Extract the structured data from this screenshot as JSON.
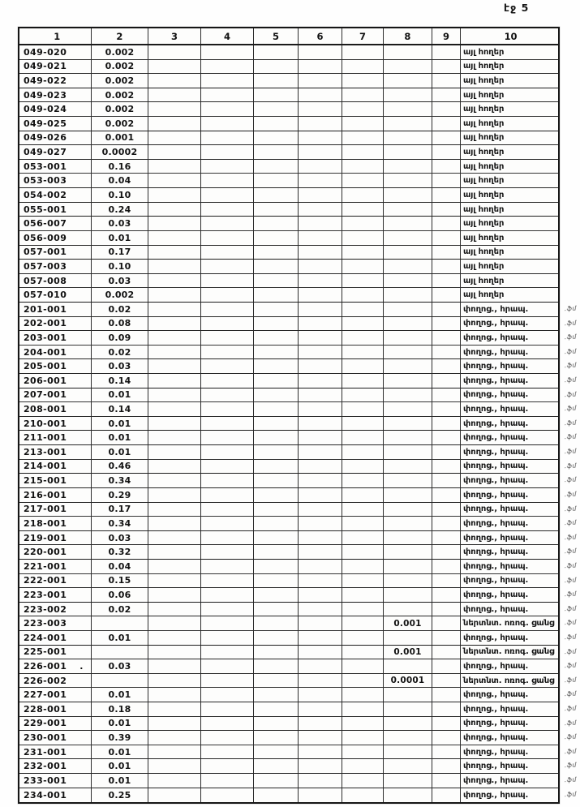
{
  "page": {
    "label": "էջ 5"
  },
  "labels": {
    "other_lands": "այլ հողեր",
    "streets_squares": "փողոց., հրապ.",
    "irrigation_network": "ներտնտ. ոռոգ. ցանց"
  },
  "table": {
    "headers": [
      "1",
      "2",
      "3",
      "4",
      "5",
      "6",
      "7",
      "8",
      "9",
      "10"
    ],
    "rows": [
      {
        "c1": "049-020",
        "c2": "0.002",
        "c8": "",
        "c10": "այլ հողեր",
        "mark": ""
      },
      {
        "c1": "049-021",
        "c2": "0.002",
        "c8": "",
        "c10": "այլ հողեր",
        "mark": ""
      },
      {
        "c1": "049-022",
        "c2": "0.002",
        "c8": "",
        "c10": "այլ հողեր",
        "mark": ""
      },
      {
        "c1": "049-023",
        "c2": "0.002",
        "c8": "",
        "c10": "այլ հողեր",
        "mark": ""
      },
      {
        "c1": "049-024",
        "c2": "0.002",
        "c8": "",
        "c10": "այլ հողեր",
        "mark": ""
      },
      {
        "c1": "049-025",
        "c2": "0.002",
        "c8": "",
        "c10": "այլ հողեր",
        "mark": ""
      },
      {
        "c1": "049-026",
        "c2": "0.001",
        "c8": "",
        "c10": "այլ հողեր",
        "mark": ""
      },
      {
        "c1": "049-027",
        "c2": "0.0002",
        "c8": "",
        "c10": "այլ հողեր",
        "mark": ""
      },
      {
        "c1": "053-001",
        "c2": "0.16",
        "c8": "",
        "c10": "այլ հողեր",
        "mark": ""
      },
      {
        "c1": "053-003",
        "c2": "0.04",
        "c8": "",
        "c10": "այլ հողեր",
        "mark": ""
      },
      {
        "c1": "054-002",
        "c2": "0.10",
        "c8": "",
        "c10": "այլ հողեր",
        "mark": ""
      },
      {
        "c1": "055-001",
        "c2": "0.24",
        "c8": "",
        "c10": "այլ հողեր",
        "mark": ""
      },
      {
        "c1": "056-007",
        "c2": "0.03",
        "c8": "",
        "c10": "այլ հողեր",
        "mark": ""
      },
      {
        "c1": "056-009",
        "c2": "0.01",
        "c8": "",
        "c10": "այլ հողեր",
        "mark": ""
      },
      {
        "c1": "057-001",
        "c2": "0.17",
        "c8": "",
        "c10": "այլ հողեր",
        "mark": ""
      },
      {
        "c1": "057-003",
        "c2": "0.10",
        "c8": "",
        "c10": "այլ հողեր",
        "mark": ""
      },
      {
        "c1": "057-008",
        "c2": "0.03",
        "c8": "",
        "c10": "այլ հողեր",
        "mark": ""
      },
      {
        "c1": "057-010",
        "c2": "0.002",
        "c8": "",
        "c10": "այլ հողեր",
        "mark": ""
      },
      {
        "c1": "201-001",
        "c2": "0.02",
        "c8": "",
        "c10": "փողոց., հրապ.",
        "mark": ".ֆմ"
      },
      {
        "c1": "202-001",
        "c2": "0.08",
        "c8": "",
        "c10": "փողոց., հրապ.",
        "mark": ".ֆմ"
      },
      {
        "c1": "203-001",
        "c2": "0.09",
        "c8": "",
        "c10": "փողոց., հրապ.",
        "mark": ".ֆմ"
      },
      {
        "c1": "204-001",
        "c2": "0.02",
        "c8": "",
        "c10": "փողոց., հրապ.",
        "mark": ".ֆմ"
      },
      {
        "c1": "205-001",
        "c2": "0.03",
        "c8": "",
        "c10": "փողոց., հրապ.",
        "mark": ".ֆմ"
      },
      {
        "c1": "206-001",
        "c2": "0.14",
        "c8": "",
        "c10": "փողոց., հրապ.",
        "mark": ".ֆմ"
      },
      {
        "c1": "207-001",
        "c2": "0.01",
        "c8": "",
        "c10": "փողոց., հրապ.",
        "mark": ".ֆմ"
      },
      {
        "c1": "208-001",
        "c2": "0.14",
        "c8": "",
        "c10": "փողոց., հրապ.",
        "mark": ".ֆմ"
      },
      {
        "c1": "210-001",
        "c2": "0.01",
        "c8": "",
        "c10": "փողոց., հրապ.",
        "mark": ".ֆմ"
      },
      {
        "c1": "211-001",
        "c2": "0.01",
        "c8": "",
        "c10": "փողոց., հրապ.",
        "mark": ".ֆմ"
      },
      {
        "c1": "213-001",
        "c2": "0.01",
        "c8": "",
        "c10": "փողոց., հրապ.",
        "mark": ".ֆմ"
      },
      {
        "c1": "214-001",
        "c2": "0.46",
        "c8": "",
        "c10": "փողոց., հրապ.",
        "mark": ".ֆմ"
      },
      {
        "c1": "215-001",
        "c2": "0.34",
        "c8": "",
        "c10": "փողոց., հրապ.",
        "mark": ".ֆմ"
      },
      {
        "c1": "216-001",
        "c2": "0.29",
        "c8": "",
        "c10": "փողոց., հրապ.",
        "mark": ".ֆմ"
      },
      {
        "c1": "217-001",
        "c2": "0.17",
        "c8": "",
        "c10": "փողոց., հրապ.",
        "mark": ".ֆմ"
      },
      {
        "c1": "218-001",
        "c2": "0.34",
        "c8": "",
        "c10": "փողոց., հրապ.",
        "mark": ".ֆմ"
      },
      {
        "c1": "219-001",
        "c2": "0.03",
        "c8": "",
        "c10": "փողոց., հրապ.",
        "mark": ".ֆմ"
      },
      {
        "c1": "220-001",
        "c2": "0.32",
        "c8": "",
        "c10": "փողոց., հրապ.",
        "mark": ".ֆմ"
      },
      {
        "c1": "221-001",
        "c2": "0.04",
        "c8": "",
        "c10": "փողոց., հրապ.",
        "mark": ".ֆմ"
      },
      {
        "c1": "222-001",
        "c2": "0.15",
        "c8": "",
        "c10": "փողոց., հրապ.",
        "mark": ".ֆմ"
      },
      {
        "c1": "223-001",
        "c2": "0.06",
        "c8": "",
        "c10": "փողոց., հրապ.",
        "mark": ".ֆմ"
      },
      {
        "c1": "223-002",
        "c2": "0.02",
        "c8": "",
        "c10": "փողոց., հրապ.",
        "mark": ".ֆմ"
      },
      {
        "c1": "223-003",
        "c2": "",
        "c8": "0.001",
        "c10": "ներտնտ. ոռոգ. ցանց",
        "mark": ".ֆմ"
      },
      {
        "c1": "224-001",
        "c2": "0.01",
        "c8": "",
        "c10": "փողոց., հրապ.",
        "mark": ".ֆմ"
      },
      {
        "c1": "225-001",
        "c2": "",
        "c8": "0.001",
        "c10": "ներտնտ. ոռոգ. ցանց",
        "mark": ".ֆմ"
      },
      {
        "c1": "226-001",
        "c2": "0.03",
        "c8": "",
        "c10": "փողոց., հրապ.",
        "mark": ".ֆմ",
        "stray_dot": true
      },
      {
        "c1": "226-002",
        "c2": "",
        "c8": "0.0001",
        "c10": "ներտնտ. ոռոգ. ցանց",
        "mark": ".ֆմ"
      },
      {
        "c1": "227-001",
        "c2": "0.01",
        "c8": "",
        "c10": "փողոց., հրապ.",
        "mark": ".ֆմ"
      },
      {
        "c1": "228-001",
        "c2": "0.18",
        "c8": "",
        "c10": "փողոց., հրապ.",
        "mark": ".ֆմ"
      },
      {
        "c1": "229-001",
        "c2": "0.01",
        "c8": "",
        "c10": "փողոց., հրապ.",
        "mark": ".ֆմ"
      },
      {
        "c1": "230-001",
        "c2": "0.39",
        "c8": "",
        "c10": "փողոց., հրապ.",
        "mark": ".ֆմ"
      },
      {
        "c1": "231-001",
        "c2": "0.01",
        "c8": "",
        "c10": "փողոց., հրապ.",
        "mark": ".ֆմ"
      },
      {
        "c1": "232-001",
        "c2": "0.01",
        "c8": "",
        "c10": "փողոց., հրապ.",
        "mark": ".ֆմ"
      },
      {
        "c1": "233-001",
        "c2": "0.01",
        "c8": "",
        "c10": "փողոց., հրապ.",
        "mark": ".ֆմ"
      },
      {
        "c1": "234-001",
        "c2": "0.25",
        "c8": "",
        "c10": "փողոց., հրապ.",
        "mark": ".ֆմ"
      }
    ]
  }
}
